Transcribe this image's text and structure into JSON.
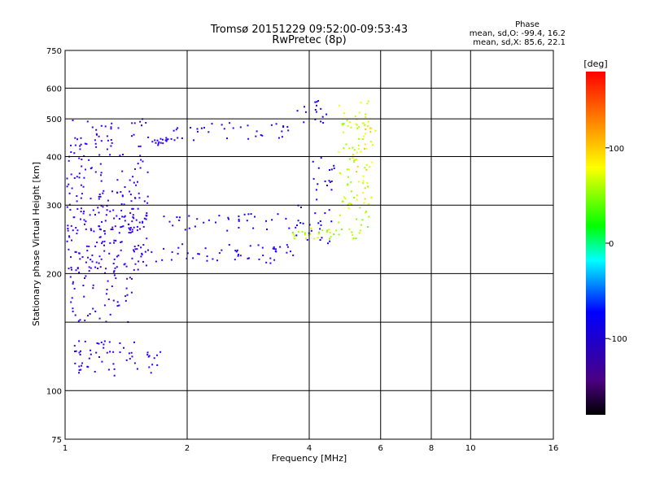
{
  "chart_data": {
    "type": "scatter",
    "title": "Tromsø 20151229 09:52:00-09:53:43",
    "subtitle": "RwPretec (8p)",
    "xlabel": "Frequency [MHz]",
    "ylabel": "Stationary phase Virtual Height [km]",
    "x_scale": "log",
    "y_scale": "log",
    "xlim": [
      1,
      16
    ],
    "ylim": [
      75,
      750
    ],
    "grid": true,
    "x_ticks": [
      "1",
      "2",
      "4",
      "6",
      "8",
      "10",
      "16"
    ],
    "y_ticks": [
      "750",
      "600",
      "500",
      "400",
      "300",
      "200",
      "100",
      "75"
    ],
    "phase_stats": {
      "heading": "Phase",
      "line_o": "mean, sd,O: -99.4, 16.2",
      "line_x": "mean, sd,X:  85.6, 22.1"
    },
    "colorbar": {
      "label": "[deg]",
      "ticks": [
        "100",
        "0",
        "-100"
      ],
      "range": [
        -180,
        180
      ]
    },
    "traces": [
      {
        "x0": 1.6,
        "x1": 1.85,
        "y0": 430,
        "y1": 450,
        "phase": -110,
        "n": 18
      },
      {
        "x0": 1.85,
        "x1": 3.6,
        "y0": 440,
        "y1": 490,
        "phase": -105,
        "n": 35
      },
      {
        "x0": 3.6,
        "x1": 4.4,
        "y0": 490,
        "y1": 560,
        "phase": -95,
        "n": 16
      },
      {
        "x0": 1.5,
        "x1": 3.7,
        "y0": 212,
        "y1": 238,
        "phase": -110,
        "n": 60
      },
      {
        "x0": 1.3,
        "x1": 3.8,
        "y0": 260,
        "y1": 290,
        "phase": -100,
        "n": 45
      },
      {
        "x0": 3.7,
        "x1": 4.6,
        "y0": 240,
        "y1": 400,
        "phase": -90,
        "n": 40
      },
      {
        "x0": 3.6,
        "x1": 5.4,
        "y0": 245,
        "y1": 262,
        "phase": 95,
        "n": 35
      },
      {
        "x0": 4.7,
        "x1": 5.6,
        "y0": 260,
        "y1": 560,
        "phase": 100,
        "n": 80
      },
      {
        "x0": 5.1,
        "x1": 5.8,
        "y0": 300,
        "y1": 500,
        "phase": 120,
        "n": 30
      },
      {
        "x0": 1.0,
        "x1": 1.6,
        "y0": 200,
        "y1": 500,
        "phase": -120,
        "n": 220
      },
      {
        "x0": 1.0,
        "x1": 1.5,
        "y0": 150,
        "y1": 300,
        "phase": -115,
        "n": 120
      },
      {
        "x0": 1.02,
        "x1": 1.7,
        "y0": 110,
        "y1": 135,
        "phase": -110,
        "n": 60
      }
    ]
  }
}
